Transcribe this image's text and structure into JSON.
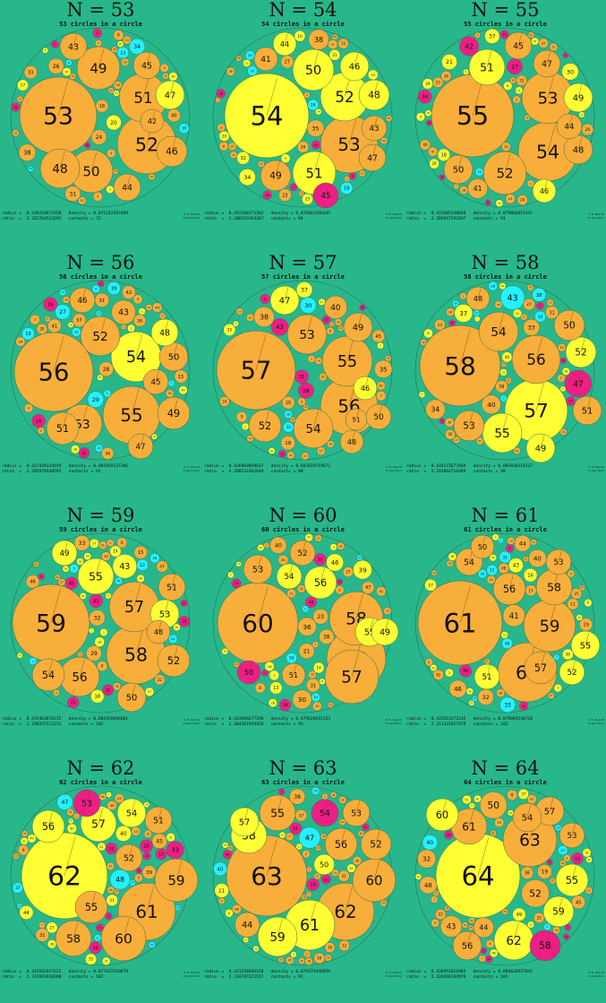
{
  "panels": [
    {
      "n": 53,
      "heading": "N = 53",
      "subtitle": "53 circles in a circle",
      "radius_line": "radius =  0.436254971958   density = 0.875242297469",
      "ratio_line": "ratio  =  2.282764524292   contacts = 72",
      "big": [
        {
          "label": "53",
          "color": "orange"
        },
        {
          "label": "52",
          "color": "orange"
        },
        {
          "label": "51",
          "color": "orange"
        },
        {
          "label": "50",
          "color": "orange"
        },
        {
          "label": "49",
          "color": "orange"
        },
        {
          "label": "48",
          "color": "orange"
        },
        {
          "label": "47",
          "color": "yellow"
        },
        {
          "label": "46",
          "color": "orange"
        },
        {
          "label": "45",
          "color": "orange"
        },
        {
          "label": "44",
          "color": "orange"
        },
        {
          "label": "43",
          "color": "orange"
        },
        {
          "label": "42",
          "color": "orange"
        }
      ]
    },
    {
      "n": 54,
      "heading": "N = 54",
      "subtitle": "54 circles in a circle",
      "radius_line": "radius =  0.437268373362   density = 0.876662586345",
      "ratio_line": "ratio  =  2.286519164367   contacts = 94",
      "big": [
        {
          "label": "54",
          "color": "yellow"
        },
        {
          "label": "53",
          "color": "orange"
        },
        {
          "label": "52",
          "color": "yellow"
        },
        {
          "label": "51",
          "color": "yellow"
        },
        {
          "label": "50",
          "color": "yellow"
        },
        {
          "label": "49",
          "color": "orange"
        },
        {
          "label": "48",
          "color": "yellow"
        },
        {
          "label": "47",
          "color": "orange"
        },
        {
          "label": "46",
          "color": "yellow"
        },
        {
          "label": "45",
          "color": "magenta"
        },
        {
          "label": "44",
          "color": "yellow"
        },
        {
          "label": "43",
          "color": "orange"
        }
      ]
    },
    {
      "n": 55,
      "heading": "N = 55",
      "subtitle": "55 circles in a circle",
      "radius_line": "radius =  0.437685540669   density = 0.879066852451",
      "ratio_line": "ratio  =  2.285947292497   contacts = 91",
      "big": [
        {
          "label": "55",
          "color": "orange"
        },
        {
          "label": "54",
          "color": "orange"
        },
        {
          "label": "53",
          "color": "orange"
        },
        {
          "label": "52",
          "color": "orange"
        },
        {
          "label": "51",
          "color": "yellow"
        },
        {
          "label": "50",
          "color": "orange"
        },
        {
          "label": "49",
          "color": "yellow"
        },
        {
          "label": "48",
          "color": "orange"
        },
        {
          "label": "47",
          "color": "orange"
        },
        {
          "label": "46",
          "color": "yellow"
        },
        {
          "label": "45",
          "color": "orange"
        },
        {
          "label": "44",
          "color": "orange"
        }
      ]
    },
    {
      "n": 56,
      "heading": "N = 56",
      "subtitle": "56 circles in a circle",
      "radius_line": "radius =  0.437449234459   density = 0.882459227306",
      "ratio_line": "ratio  =  2.285979540592   contacts = 92",
      "big": [
        {
          "label": "56",
          "color": "orange"
        },
        {
          "label": "55",
          "color": "orange"
        },
        {
          "label": "54",
          "color": "yellow"
        },
        {
          "label": "53",
          "color": "orange"
        },
        {
          "label": "52",
          "color": "orange"
        },
        {
          "label": "51",
          "color": "orange"
        },
        {
          "label": "50",
          "color": "orange"
        },
        {
          "label": "49",
          "color": "orange"
        },
        {
          "label": "48",
          "color": "yellow"
        },
        {
          "label": "47",
          "color": "orange"
        },
        {
          "label": "46",
          "color": "orange"
        },
        {
          "label": "45",
          "color": "orange"
        }
      ]
    },
    {
      "n": 57,
      "heading": "N = 57",
      "subtitle": "57 circles in a circle",
      "radius_line": "radius =  0.436968869637   density = 0.883839719672",
      "ratio_line": "ratio  =  2.288532462649   contacts = 88",
      "big": [
        {
          "label": "57",
          "color": "orange"
        },
        {
          "label": "56",
          "color": "orange"
        },
        {
          "label": "55",
          "color": "orange"
        },
        {
          "label": "54",
          "color": "orange"
        },
        {
          "label": "53",
          "color": "orange"
        },
        {
          "label": "52",
          "color": "orange"
        },
        {
          "label": "51",
          "color": "orange"
        },
        {
          "label": "50",
          "color": "orange"
        },
        {
          "label": "49",
          "color": "orange"
        },
        {
          "label": "48",
          "color": "orange"
        },
        {
          "label": "47",
          "color": "yellow"
        },
        {
          "label": "46",
          "color": "yellow"
        }
      ]
    },
    {
      "n": 58,
      "heading": "N = 58",
      "subtitle": "58 circles in a circle",
      "radius_line": "radius =  0.434173677604   density = 0.883930214127",
      "ratio_line": "ratio  =  2.292864716469   contacts = 90",
      "big": [
        {
          "label": "58",
          "color": "orange"
        },
        {
          "label": "57",
          "color": "yellow"
        },
        {
          "label": "56",
          "color": "orange"
        },
        {
          "label": "55",
          "color": "yellow"
        },
        {
          "label": "54",
          "color": "orange"
        },
        {
          "label": "53",
          "color": "orange"
        },
        {
          "label": "52",
          "color": "yellow"
        },
        {
          "label": "51",
          "color": "orange"
        },
        {
          "label": "50",
          "color": "orange"
        },
        {
          "label": "49",
          "color": "yellow"
        },
        {
          "label": "48",
          "color": "orange"
        },
        {
          "label": "47",
          "color": "magenta"
        }
      ]
    },
    {
      "n": 59,
      "heading": "N = 59",
      "subtitle": "59 circles in a circle",
      "radius_line": "radius =  0.435463878215   density = 0.884356096881",
      "ratio_line": "ratio  =  2.296297312152   contacts = 102",
      "big": [
        {
          "label": "59",
          "color": "orange"
        },
        {
          "label": "58",
          "color": "orange"
        },
        {
          "label": "57",
          "color": "orange"
        },
        {
          "label": "56",
          "color": "orange"
        },
        {
          "label": "55",
          "color": "yellow"
        },
        {
          "label": "54",
          "color": "orange"
        },
        {
          "label": "53",
          "color": "yellow"
        },
        {
          "label": "52",
          "color": "orange"
        },
        {
          "label": "51",
          "color": "orange"
        },
        {
          "label": "50",
          "color": "orange"
        },
        {
          "label": "49",
          "color": "yellow"
        },
        {
          "label": "48",
          "color": "orange"
        }
      ]
    },
    {
      "n": 60,
      "heading": "N = 60",
      "subtitle": "60 circles in a circle",
      "radius_line": "radius =  0.433966677290   density = 0.879628915133",
      "ratio_line": "ratio  =  2.304381919926   contacts = 93",
      "big": [
        {
          "label": "60",
          "color": "orange"
        },
        {
          "label": "59",
          "color": "orange"
        },
        {
          "label": "58",
          "color": "orange"
        },
        {
          "label": "57",
          "color": "orange"
        },
        {
          "label": "56",
          "color": "yellow"
        },
        {
          "label": "55",
          "color": "yellow"
        },
        {
          "label": "54",
          "color": "yellow"
        },
        {
          "label": "53",
          "color": "orange"
        },
        {
          "label": "52",
          "color": "orange"
        },
        {
          "label": "51",
          "color": "orange"
        },
        {
          "label": "50",
          "color": "magenta"
        },
        {
          "label": "49",
          "color": "yellow"
        }
      ]
    },
    {
      "n": 61,
      "heading": "N = 61",
      "subtitle": "61 circles in a circle",
      "radius_line": "radius =  0.432853272145   density = 0.879009248720",
      "ratio_line": "ratio  =  2.311319427919   contacts = 102",
      "big": [
        {
          "label": "61",
          "color": "orange"
        },
        {
          "label": "60",
          "color": "orange"
        },
        {
          "label": "59",
          "color": "orange"
        },
        {
          "label": "58",
          "color": "orange"
        },
        {
          "label": "57",
          "color": "orange"
        },
        {
          "label": "56",
          "color": "orange"
        },
        {
          "label": "55",
          "color": "yellow"
        },
        {
          "label": "54",
          "color": "orange"
        },
        {
          "label": "53",
          "color": "orange"
        },
        {
          "label": "52",
          "color": "yellow"
        },
        {
          "label": "51",
          "color": "yellow"
        },
        {
          "label": "50",
          "color": "orange"
        }
      ]
    },
    {
      "n": 62,
      "heading": "N = 62",
      "subtitle": "62 circles in a circle",
      "radius_line": "radius =  0.431562927622   density = 0.877422518879",
      "ratio_line": "ratio  =  2.317691910398   contacts = 102",
      "big": [
        {
          "label": "62",
          "color": "yellow"
        },
        {
          "label": "61",
          "color": "orange"
        },
        {
          "label": "60",
          "color": "orange"
        },
        {
          "label": "59",
          "color": "orange"
        },
        {
          "label": "58",
          "color": "orange"
        },
        {
          "label": "57",
          "color": "yellow"
        },
        {
          "label": "56",
          "color": "yellow"
        },
        {
          "label": "55",
          "color": "orange"
        },
        {
          "label": "54",
          "color": "yellow"
        },
        {
          "label": "53",
          "color": "magenta"
        },
        {
          "label": "52",
          "color": "orange"
        },
        {
          "label": "51",
          "color": "orange"
        }
      ]
    },
    {
      "n": 63,
      "heading": "N = 63",
      "subtitle": "63 circles in a circle",
      "radius_line": "radius =  0.431258946158   density = 0.879379446859",
      "ratio_line": "ratio  =  2.318787321557   contacts = 91",
      "big": [
        {
          "label": "63",
          "color": "orange"
        },
        {
          "label": "62",
          "color": "orange"
        },
        {
          "label": "61",
          "color": "yellow"
        },
        {
          "label": "60",
          "color": "orange"
        },
        {
          "label": "59",
          "color": "yellow"
        },
        {
          "label": "58",
          "color": "yellow"
        },
        {
          "label": "57",
          "color": "yellow"
        },
        {
          "label": "56",
          "color": "orange"
        },
        {
          "label": "55",
          "color": "orange"
        },
        {
          "label": "54",
          "color": "magenta"
        },
        {
          "label": "53",
          "color": "orange"
        },
        {
          "label": "52",
          "color": "orange"
        }
      ]
    },
    {
      "n": 64,
      "heading": "N = 64",
      "subtitle": "64 circles in a circle",
      "radius_line": "radius =  0.430952016903   density = 0.880626927842",
      "ratio_line": "ratio  =  2.320398334976   contacts = 105",
      "big": [
        {
          "label": "64",
          "color": "yellow"
        },
        {
          "label": "63",
          "color": "orange"
        },
        {
          "label": "62",
          "color": "yellow"
        },
        {
          "label": "61",
          "color": "orange"
        },
        {
          "label": "60",
          "color": "yellow"
        },
        {
          "label": "59",
          "color": "yellow"
        },
        {
          "label": "58",
          "color": "magenta"
        },
        {
          "label": "57",
          "color": "orange"
        },
        {
          "label": "56",
          "color": "orange"
        },
        {
          "label": "55",
          "color": "yellow"
        },
        {
          "label": "54",
          "color": "orange"
        },
        {
          "label": "53",
          "color": "orange"
        }
      ]
    }
  ],
  "credit_line1": "© E. Specht",
  "credit_line2": "27-Apr-2011",
  "colors": {
    "background": "#27b78a",
    "orange": "#f8ae3a",
    "yellow": "#ffff33",
    "magenta": "#ee1f84",
    "cyan": "#25f0ff",
    "outline": "#2f6d55"
  }
}
